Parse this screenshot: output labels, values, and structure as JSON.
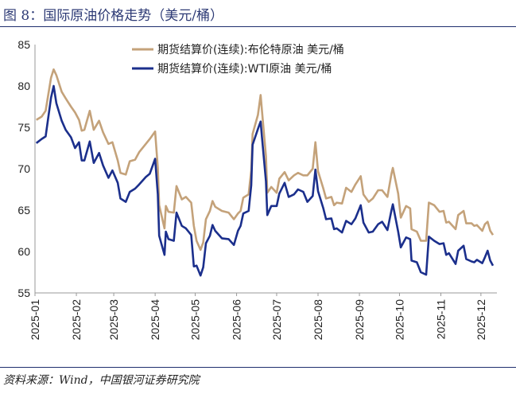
{
  "header": {
    "title": "图 8：国际原油价格走势（美元/桶）"
  },
  "footer": {
    "source": "资料来源：Wind，中国银河证券研究院"
  },
  "colors": {
    "brent": "#c4a27a",
    "wti": "#1b2f8c",
    "title": "#2d3a75",
    "rule": "#1f2f6e"
  },
  "chart_data": {
    "type": "line",
    "title": "国际原油价格走势（美元/桶）",
    "xlabel": "",
    "ylabel": "",
    "ylim": [
      55,
      85
    ],
    "yticks": [
      "55",
      "60",
      "65",
      "70",
      "75",
      "80",
      "85"
    ],
    "xlim": [
      "2025-01-01",
      "2025-12-10"
    ],
    "xticks": [
      {
        "date": "2025-01-01",
        "label": "2025-01"
      },
      {
        "date": "2025-02-01",
        "label": "2025-02"
      },
      {
        "date": "2025-03-01",
        "label": "2025-03"
      },
      {
        "date": "2025-04-01",
        "label": "2025-04"
      },
      {
        "date": "2025-05-01",
        "label": "2025-05"
      },
      {
        "date": "2025-06-01",
        "label": "2025-06"
      },
      {
        "date": "2025-07-01",
        "label": "2025-07"
      },
      {
        "date": "2025-08-01",
        "label": "2025-08"
      },
      {
        "date": "2025-09-01",
        "label": "2025-09"
      },
      {
        "date": "2025-10-01",
        "label": "2025-10"
      },
      {
        "date": "2025-11-01",
        "label": "2025-11"
      },
      {
        "date": "2025-12-01",
        "label": "2025-12"
      }
    ],
    "legend_position": "top-right",
    "series": [
      {
        "name": "期货结算价(连续):布伦特原油 美元/桶",
        "color": "#c4a27a",
        "points": [
          [
            "2025-01-02",
            75.9
          ],
          [
            "2025-01-06",
            76.3
          ],
          [
            "2025-01-09",
            77.0
          ],
          [
            "2025-01-13",
            81.0
          ],
          [
            "2025-01-15",
            82.0
          ],
          [
            "2025-01-17",
            81.3
          ],
          [
            "2025-01-21",
            79.3
          ],
          [
            "2025-01-24",
            78.5
          ],
          [
            "2025-01-28",
            77.5
          ],
          [
            "2025-01-31",
            76.8
          ],
          [
            "2025-02-03",
            75.9
          ],
          [
            "2025-02-05",
            74.6
          ],
          [
            "2025-02-07",
            74.7
          ],
          [
            "2025-02-11",
            77.0
          ],
          [
            "2025-02-14",
            74.7
          ],
          [
            "2025-02-18",
            75.8
          ],
          [
            "2025-02-21",
            74.4
          ],
          [
            "2025-02-25",
            73.0
          ],
          [
            "2025-02-28",
            73.2
          ],
          [
            "2025-03-04",
            71.0
          ],
          [
            "2025-03-06",
            69.5
          ],
          [
            "2025-03-10",
            69.3
          ],
          [
            "2025-03-13",
            70.9
          ],
          [
            "2025-03-17",
            71.1
          ],
          [
            "2025-03-20",
            72.0
          ],
          [
            "2025-03-25",
            73.0
          ],
          [
            "2025-03-28",
            73.6
          ],
          [
            "2025-04-01",
            74.5
          ],
          [
            "2025-04-03",
            70.1
          ],
          [
            "2025-04-04",
            65.6
          ],
          [
            "2025-04-08",
            62.8
          ],
          [
            "2025-04-09",
            65.5
          ],
          [
            "2025-04-11",
            64.8
          ],
          [
            "2025-04-15",
            64.7
          ],
          [
            "2025-04-17",
            67.9
          ],
          [
            "2025-04-21",
            66.3
          ],
          [
            "2025-04-24",
            66.6
          ],
          [
            "2025-04-28",
            65.9
          ],
          [
            "2025-04-30",
            63.1
          ],
          [
            "2025-05-02",
            61.3
          ],
          [
            "2025-05-05",
            60.2
          ],
          [
            "2025-05-07",
            61.1
          ],
          [
            "2025-05-09",
            63.9
          ],
          [
            "2025-05-12",
            64.9
          ],
          [
            "2025-05-14",
            66.1
          ],
          [
            "2025-05-16",
            65.4
          ],
          [
            "2025-05-21",
            64.9
          ],
          [
            "2025-05-26",
            64.7
          ],
          [
            "2025-05-30",
            63.9
          ],
          [
            "2025-06-02",
            64.6
          ],
          [
            "2025-06-04",
            64.9
          ],
          [
            "2025-06-06",
            66.5
          ],
          [
            "2025-06-10",
            66.9
          ],
          [
            "2025-06-12",
            69.8
          ],
          [
            "2025-06-13",
            74.2
          ],
          [
            "2025-06-17",
            76.5
          ],
          [
            "2025-06-19",
            78.9
          ],
          [
            "2025-06-20",
            77.0
          ],
          [
            "2025-06-23",
            71.5
          ],
          [
            "2025-06-24",
            67.1
          ],
          [
            "2025-06-27",
            67.8
          ],
          [
            "2025-07-01",
            67.1
          ],
          [
            "2025-07-03",
            68.8
          ],
          [
            "2025-07-07",
            69.6
          ],
          [
            "2025-07-10",
            68.6
          ],
          [
            "2025-07-14",
            69.2
          ],
          [
            "2025-07-17",
            69.5
          ],
          [
            "2025-07-21",
            69.2
          ],
          [
            "2025-07-24",
            69.2
          ],
          [
            "2025-07-28",
            70.0
          ],
          [
            "2025-07-30",
            73.2
          ],
          [
            "2025-08-01",
            69.7
          ],
          [
            "2025-08-05",
            67.6
          ],
          [
            "2025-08-07",
            66.4
          ],
          [
            "2025-08-11",
            66.6
          ],
          [
            "2025-08-13",
            65.6
          ],
          [
            "2025-08-15",
            65.9
          ],
          [
            "2025-08-19",
            65.8
          ],
          [
            "2025-08-22",
            67.7
          ],
          [
            "2025-08-26",
            67.2
          ],
          [
            "2025-08-29",
            68.1
          ],
          [
            "2025-09-02",
            69.1
          ],
          [
            "2025-09-04",
            66.9
          ],
          [
            "2025-09-08",
            66.0
          ],
          [
            "2025-09-11",
            66.4
          ],
          [
            "2025-09-15",
            67.4
          ],
          [
            "2025-09-18",
            67.4
          ],
          [
            "2025-09-22",
            66.6
          ],
          [
            "2025-09-25",
            69.4
          ],
          [
            "2025-09-26",
            70.1
          ],
          [
            "2025-09-30",
            67.0
          ],
          [
            "2025-10-02",
            64.1
          ],
          [
            "2025-10-06",
            65.5
          ],
          [
            "2025-10-09",
            65.2
          ],
          [
            "2025-10-10",
            62.7
          ],
          [
            "2025-10-14",
            62.4
          ],
          [
            "2025-10-17",
            61.3
          ],
          [
            "2025-10-21",
            61.3
          ],
          [
            "2025-10-23",
            65.9
          ],
          [
            "2025-10-27",
            65.6
          ],
          [
            "2025-10-31",
            64.8
          ],
          [
            "2025-11-03",
            64.9
          ],
          [
            "2025-11-05",
            63.5
          ],
          [
            "2025-11-07",
            63.6
          ],
          [
            "2025-11-12",
            62.7
          ],
          [
            "2025-11-14",
            64.4
          ],
          [
            "2025-11-18",
            64.9
          ],
          [
            "2025-11-20",
            63.4
          ],
          [
            "2025-11-24",
            63.4
          ],
          [
            "2025-11-26",
            63.1
          ],
          [
            "2025-11-28",
            63.2
          ],
          [
            "2025-12-02",
            62.5
          ],
          [
            "2025-12-04",
            63.3
          ],
          [
            "2025-12-06",
            63.6
          ],
          [
            "2025-12-08",
            62.5
          ],
          [
            "2025-12-10",
            62.0
          ]
        ]
      },
      {
        "name": "期货结算价(连续):WTI原油 美元/桶",
        "color": "#1b2f8c",
        "points": [
          [
            "2025-01-02",
            73.1
          ],
          [
            "2025-01-06",
            73.6
          ],
          [
            "2025-01-09",
            73.9
          ],
          [
            "2025-01-13",
            78.6
          ],
          [
            "2025-01-15",
            80.0
          ],
          [
            "2025-01-17",
            77.9
          ],
          [
            "2025-01-21",
            75.8
          ],
          [
            "2025-01-24",
            74.7
          ],
          [
            "2025-01-28",
            73.8
          ],
          [
            "2025-01-31",
            72.5
          ],
          [
            "2025-02-03",
            73.2
          ],
          [
            "2025-02-05",
            71.0
          ],
          [
            "2025-02-07",
            71.0
          ],
          [
            "2025-02-11",
            73.3
          ],
          [
            "2025-02-14",
            70.7
          ],
          [
            "2025-02-18",
            71.9
          ],
          [
            "2025-02-21",
            70.4
          ],
          [
            "2025-02-25",
            68.9
          ],
          [
            "2025-02-28",
            69.8
          ],
          [
            "2025-03-04",
            68.3
          ],
          [
            "2025-03-06",
            66.4
          ],
          [
            "2025-03-10",
            66.0
          ],
          [
            "2025-03-13",
            67.2
          ],
          [
            "2025-03-17",
            67.6
          ],
          [
            "2025-03-20",
            68.1
          ],
          [
            "2025-03-25",
            69.0
          ],
          [
            "2025-03-28",
            69.4
          ],
          [
            "2025-04-01",
            71.2
          ],
          [
            "2025-04-03",
            66.9
          ],
          [
            "2025-04-04",
            61.9
          ],
          [
            "2025-04-08",
            59.6
          ],
          [
            "2025-04-09",
            62.4
          ],
          [
            "2025-04-11",
            61.5
          ],
          [
            "2025-04-15",
            61.3
          ],
          [
            "2025-04-17",
            64.7
          ],
          [
            "2025-04-21",
            63.1
          ],
          [
            "2025-04-24",
            62.8
          ],
          [
            "2025-04-28",
            62.0
          ],
          [
            "2025-04-30",
            58.2
          ],
          [
            "2025-05-02",
            58.3
          ],
          [
            "2025-05-05",
            57.1
          ],
          [
            "2025-05-07",
            58.1
          ],
          [
            "2025-05-09",
            61.0
          ],
          [
            "2025-05-12",
            61.9
          ],
          [
            "2025-05-14",
            63.2
          ],
          [
            "2025-05-16",
            62.5
          ],
          [
            "2025-05-21",
            61.6
          ],
          [
            "2025-05-26",
            61.5
          ],
          [
            "2025-05-30",
            60.8
          ],
          [
            "2025-06-02",
            62.5
          ],
          [
            "2025-06-04",
            63.1
          ],
          [
            "2025-06-06",
            64.6
          ],
          [
            "2025-06-10",
            64.9
          ],
          [
            "2025-06-12",
            68.0
          ],
          [
            "2025-06-13",
            72.9
          ],
          [
            "2025-06-17",
            74.8
          ],
          [
            "2025-06-19",
            75.7
          ],
          [
            "2025-06-20",
            73.8
          ],
          [
            "2025-06-23",
            68.5
          ],
          [
            "2025-06-24",
            64.4
          ],
          [
            "2025-06-27",
            65.5
          ],
          [
            "2025-07-01",
            65.5
          ],
          [
            "2025-07-03",
            67.0
          ],
          [
            "2025-07-07",
            68.3
          ],
          [
            "2025-07-10",
            66.6
          ],
          [
            "2025-07-14",
            66.9
          ],
          [
            "2025-07-17",
            67.5
          ],
          [
            "2025-07-21",
            67.2
          ],
          [
            "2025-07-24",
            66.0
          ],
          [
            "2025-07-28",
            66.7
          ],
          [
            "2025-07-30",
            69.9
          ],
          [
            "2025-08-01",
            67.3
          ],
          [
            "2025-08-05",
            65.2
          ],
          [
            "2025-08-07",
            63.9
          ],
          [
            "2025-08-11",
            64.0
          ],
          [
            "2025-08-13",
            62.7
          ],
          [
            "2025-08-15",
            62.8
          ],
          [
            "2025-08-19",
            62.3
          ],
          [
            "2025-08-22",
            63.7
          ],
          [
            "2025-08-26",
            63.3
          ],
          [
            "2025-08-29",
            64.0
          ],
          [
            "2025-09-02",
            65.6
          ],
          [
            "2025-09-04",
            63.5
          ],
          [
            "2025-09-08",
            62.3
          ],
          [
            "2025-09-11",
            62.4
          ],
          [
            "2025-09-15",
            63.3
          ],
          [
            "2025-09-18",
            63.6
          ],
          [
            "2025-09-22",
            62.6
          ],
          [
            "2025-09-25",
            65.0
          ],
          [
            "2025-09-26",
            65.7
          ],
          [
            "2025-09-30",
            62.4
          ],
          [
            "2025-10-02",
            60.5
          ],
          [
            "2025-10-06",
            61.7
          ],
          [
            "2025-10-09",
            61.5
          ],
          [
            "2025-10-10",
            58.9
          ],
          [
            "2025-10-14",
            58.7
          ],
          [
            "2025-10-17",
            57.5
          ],
          [
            "2025-10-21",
            57.2
          ],
          [
            "2025-10-23",
            61.8
          ],
          [
            "2025-10-27",
            61.3
          ],
          [
            "2025-10-31",
            60.9
          ],
          [
            "2025-11-03",
            61.0
          ],
          [
            "2025-11-05",
            59.6
          ],
          [
            "2025-11-07",
            59.8
          ],
          [
            "2025-11-12",
            58.5
          ],
          [
            "2025-11-14",
            60.1
          ],
          [
            "2025-11-18",
            60.7
          ],
          [
            "2025-11-20",
            59.1
          ],
          [
            "2025-11-24",
            58.8
          ],
          [
            "2025-11-26",
            58.7
          ],
          [
            "2025-11-28",
            59.0
          ],
          [
            "2025-12-02",
            58.6
          ],
          [
            "2025-12-04",
            59.3
          ],
          [
            "2025-12-06",
            60.1
          ],
          [
            "2025-12-08",
            58.9
          ],
          [
            "2025-12-10",
            58.3
          ]
        ]
      }
    ]
  }
}
